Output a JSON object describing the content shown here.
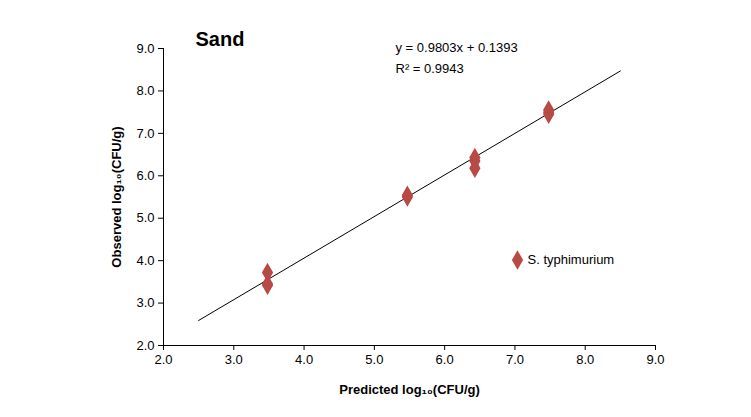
{
  "chart_data": {
    "type": "scatter",
    "title": "Sand",
    "x_label": "Predicted log₁₀(CFU/g)",
    "y_label": "Observed log₁₀(CFU/g)",
    "annotations": [
      "y = 0.9803x + 0.1393",
      "R² = 0.9943"
    ],
    "series": [
      {
        "name": "S. typhimurium",
        "color": "#b84a45",
        "marker": "diamond",
        "x": [
          3.48,
          3.48,
          3.48,
          5.47,
          5.47,
          6.43,
          6.43,
          6.43,
          7.48,
          7.48,
          7.48
        ],
        "values": [
          3.72,
          3.45,
          3.42,
          5.54,
          5.5,
          6.43,
          6.35,
          6.18,
          7.55,
          7.5,
          7.45
        ]
      }
    ],
    "trendline": {
      "x": [
        2.5,
        8.5
      ],
      "values": [
        2.59,
        8.47
      ],
      "color": "#000000",
      "line_style": "solid"
    },
    "xlim": [
      2,
      9
    ],
    "ylim": [
      2,
      9
    ],
    "xticks": [
      {
        "value": 2,
        "label": "2.0"
      },
      {
        "value": 3,
        "label": "3.0"
      },
      {
        "value": 4,
        "label": "4.0"
      },
      {
        "value": 5,
        "label": "5.0"
      },
      {
        "value": 6,
        "label": "6.0"
      },
      {
        "value": 7,
        "label": "7.0"
      },
      {
        "value": 8,
        "label": "8.0"
      },
      {
        "value": 9,
        "label": "9.0"
      }
    ],
    "yticks": [
      {
        "value": 2,
        "label": "2.0"
      },
      {
        "value": 3,
        "label": "3.0"
      },
      {
        "value": 4,
        "label": "4.0"
      },
      {
        "value": 5,
        "label": "5.0"
      },
      {
        "value": 6,
        "label": "6.0"
      },
      {
        "value": 7,
        "label": "7.0"
      },
      {
        "value": 8,
        "label": "8.0"
      },
      {
        "value": 9,
        "label": "9.0"
      }
    ],
    "grid": false,
    "legend": "right"
  }
}
